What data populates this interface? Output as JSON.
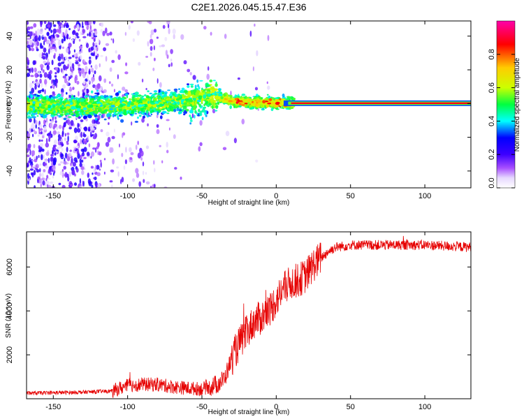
{
  "title": "C2E1.2026.045.15.47.E36",
  "chart_data": [
    {
      "type": "heatmap",
      "name": "spectrogram",
      "xlabel": "Height of straight line (km)",
      "ylabel": "Frequency (Hz)",
      "xlim": [
        -168,
        131
      ],
      "ylim": [
        -50,
        49
      ],
      "x_ticks": [
        -150,
        -100,
        -50,
        0,
        50,
        100
      ],
      "y_ticks": [
        -40,
        -20,
        0,
        20,
        40
      ],
      "colorbar": {
        "label": "Normalized spectral amplitude",
        "range": [
          0,
          1
        ],
        "ticks": [
          "0.0",
          "0.2",
          "0.4",
          "0.6",
          "0.8"
        ],
        "tick_values": [
          0.0,
          0.2,
          0.4,
          0.6,
          0.8
        ],
        "colors": [
          "#ffffff",
          "#e6d8ff",
          "#a64dff",
          "#3d00ff",
          "#0000ff",
          "#00ffff",
          "#00ff40",
          "#ccff00",
          "#ffcc00",
          "#ff0000",
          "#ff00aa"
        ]
      },
      "ridge": {
        "x": [
          -160,
          -140,
          -120,
          -100,
          -80,
          -60,
          -50,
          -45,
          -40,
          -35,
          -30,
          -20,
          -10,
          0,
          10,
          50,
          131
        ],
        "y": [
          -1.5,
          -2.0,
          -1.5,
          -1.0,
          0.0,
          2.0,
          4.0,
          5.0,
          4.5,
          3.0,
          1.5,
          0.8,
          0.5,
          0.3,
          0.2,
          0.2,
          0.2
        ]
      }
    },
    {
      "type": "line",
      "name": "snr",
      "xlabel": "Height of straight line (km)",
      "ylabel": "SNR (10 * v/v)",
      "xlim": [
        -168,
        131
      ],
      "ylim": [
        0,
        7600
      ],
      "x_ticks": [
        -150,
        -100,
        -50,
        0,
        50,
        100
      ],
      "y_ticks": [
        2000,
        4000,
        6000
      ],
      "color": "#e60000",
      "trend": {
        "x": [
          -168,
          -130,
          -110,
          -100,
          -90,
          -80,
          -70,
          -60,
          -50,
          -45,
          -40,
          -35,
          -30,
          -25,
          -20,
          -15,
          -10,
          -5,
          0,
          5,
          10,
          15,
          20,
          25,
          30,
          35,
          40,
          50,
          60,
          80,
          100,
          131
        ],
        "y": [
          250,
          300,
          350,
          600,
          650,
          650,
          550,
          480,
          450,
          550,
          650,
          900,
          1800,
          2500,
          3000,
          3500,
          3700,
          4000,
          4500,
          5000,
          5300,
          5400,
          5600,
          6100,
          6400,
          6700,
          6900,
          7000,
          7000,
          7000,
          7000,
          6900
        ]
      }
    }
  ]
}
